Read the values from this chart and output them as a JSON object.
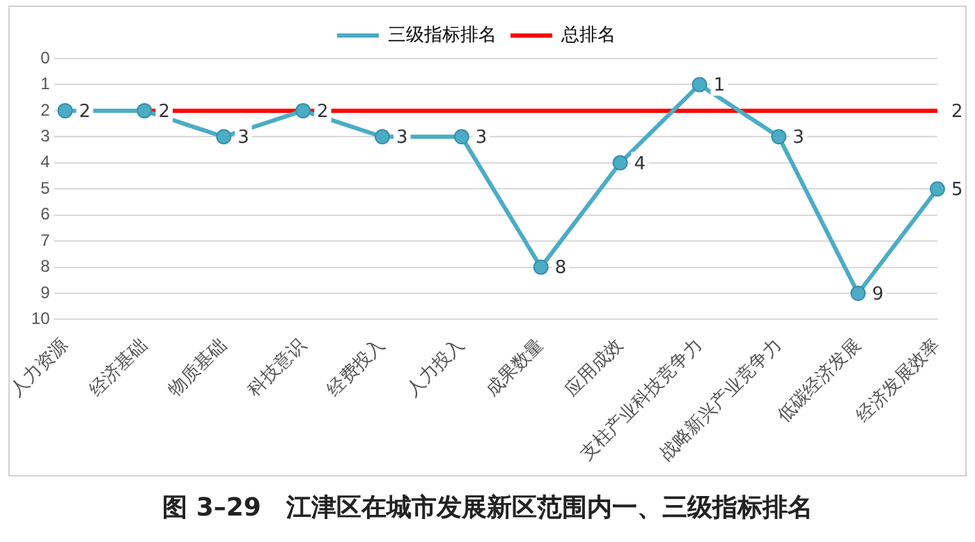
{
  "chart_data": {
    "type": "line",
    "title": "图 3–29　江津区在城市发展新区范围内一、三级指标排名",
    "categories": [
      "人力资源",
      "经济基础",
      "物质基础",
      "科技意识",
      "经费投入",
      "人力投入",
      "成果数量",
      "应用成效",
      "支柱产业科技竞争力",
      "战略新兴产业竞争力",
      "低碳经济发展",
      "经济发展效率"
    ],
    "series": [
      {
        "name": "三级指标排名",
        "color": "#4bacc6",
        "marker": "circle",
        "values": [
          2,
          2,
          3,
          2,
          3,
          3,
          8,
          4,
          1,
          3,
          9,
          5
        ],
        "value_labels": [
          "2",
          "2",
          "3",
          "2",
          "3",
          "3",
          "8",
          "4",
          "1",
          "3",
          "9",
          "5"
        ]
      },
      {
        "name": "总排名",
        "color": "#ff0000",
        "marker": "none",
        "values": [
          2,
          2,
          2,
          2,
          2,
          2,
          2,
          2,
          2,
          2,
          2,
          2
        ],
        "value_labels": [
          null,
          null,
          null,
          null,
          null,
          null,
          null,
          null,
          null,
          null,
          null,
          "2"
        ]
      }
    ],
    "ylim": [
      10,
      0
    ],
    "yticks": [
      0,
      1,
      2,
      3,
      4,
      5,
      6,
      7,
      8,
      9,
      10
    ],
    "grid": "y",
    "legend": "top",
    "line_style": "solid"
  }
}
